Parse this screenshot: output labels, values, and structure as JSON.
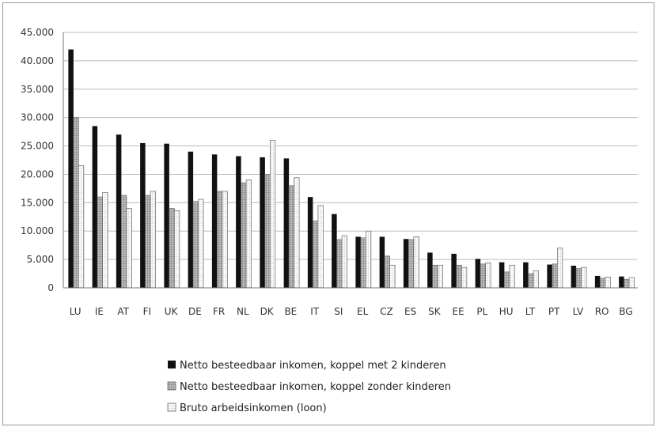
{
  "chart_data": {
    "type": "bar",
    "categories": [
      "LU",
      "IE",
      "AT",
      "FI",
      "UK",
      "DE",
      "FR",
      "NL",
      "DK",
      "BE",
      "IT",
      "SI",
      "EL",
      "CZ",
      "ES",
      "SK",
      "EE",
      "PL",
      "HU",
      "LT",
      "PT",
      "LV",
      "RO",
      "BG"
    ],
    "series": [
      {
        "name": "Netto besteedbaar inkomen, koppel met 2 kinderen",
        "values": [
          42000,
          28500,
          27000,
          25500,
          25400,
          24000,
          23500,
          23200,
          23000,
          22800,
          16000,
          13000,
          9000,
          9000,
          8600,
          6200,
          6000,
          5100,
          4500,
          4500,
          4100,
          3900,
          2100,
          2000
        ],
        "color": "#111111",
        "pattern": "solid"
      },
      {
        "name": "Netto besteedbaar inkomen, koppel zonder kinderen",
        "values": [
          30000,
          16000,
          16300,
          16300,
          14000,
          15200,
          17000,
          18500,
          20000,
          18000,
          11800,
          8500,
          8800,
          5600,
          8500,
          4000,
          4000,
          4200,
          2800,
          2500,
          4200,
          3400,
          1700,
          1500
        ],
        "color": "#8c8c8c",
        "pattern": "grid"
      },
      {
        "name": "Bruto arbeidsinkomen (loon)",
        "values": [
          21500,
          16800,
          14000,
          17000,
          13600,
          15600,
          17000,
          19000,
          26000,
          19400,
          14500,
          9200,
          10000,
          4000,
          9000,
          4000,
          3600,
          4400,
          4000,
          3000,
          7000,
          3600,
          1900,
          1800
        ],
        "color": "#ffffff",
        "pattern": "light-grid"
      }
    ],
    "ylim": [
      0,
      45000
    ],
    "yticks": [
      "0",
      "5.000",
      "10.000",
      "15.000",
      "20.000",
      "25.000",
      "30.000",
      "35.000",
      "40.000",
      "45.000"
    ],
    "grid": true,
    "legend_position": "bottom"
  }
}
